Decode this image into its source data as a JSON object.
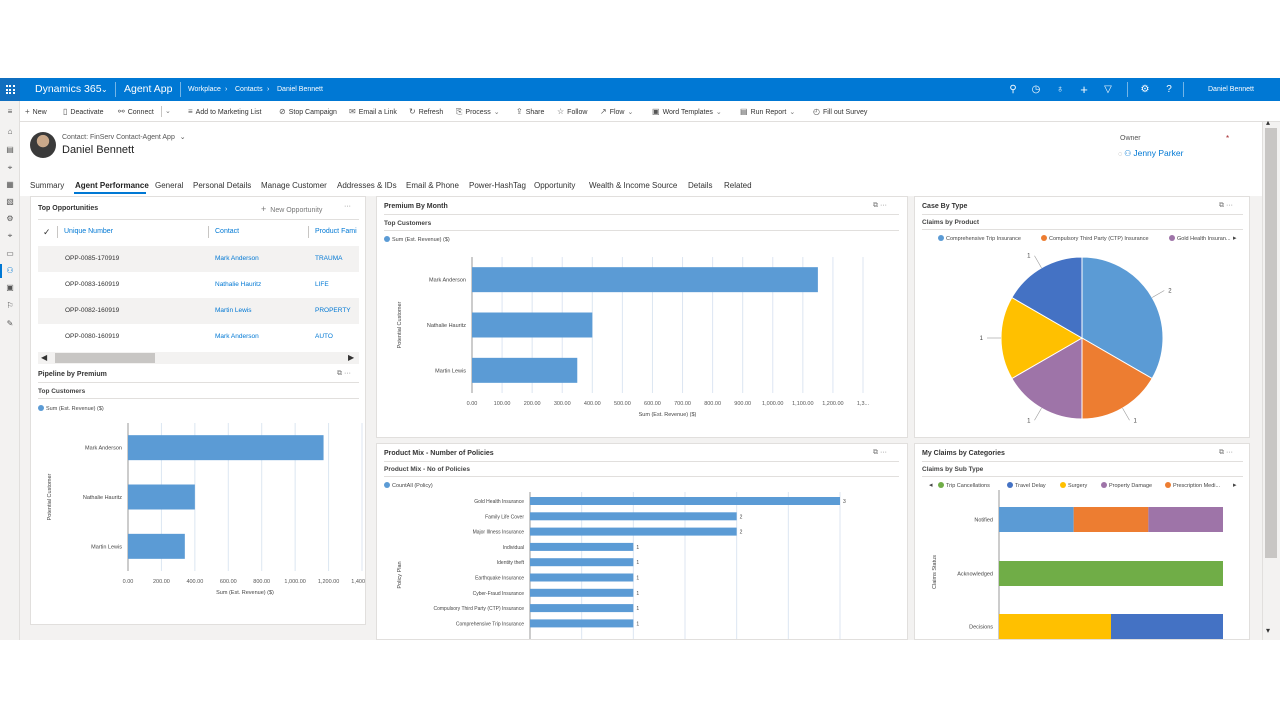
{
  "nav": {
    "app_suite": "Dynamics 365",
    "app_name": "Agent App",
    "breadcrumb": [
      "Workplace",
      "Contacts",
      "Daniel Bennett"
    ],
    "user": "Daniel Bennett"
  },
  "commands": [
    "New",
    "Deactivate",
    "Connect",
    "Add to Marketing List",
    "Stop Campaign",
    "Email a Link",
    "Refresh",
    "Process",
    "Share",
    "Follow",
    "Flow",
    "Word Templates",
    "Run Report",
    "Fill out Survey"
  ],
  "header": {
    "record_type": "Contact: FinServ Contact-Agent App",
    "name": "Daniel Bennett",
    "owner_label": "Owner",
    "owner_required": "*",
    "owner_value": "Jenny Parker"
  },
  "tabs": [
    "Summary",
    "Agent Performance",
    "General",
    "Personal Details",
    "Manage Customer",
    "Addresses & IDs",
    "Email & Phone",
    "Power-HashTag",
    "Opportunity",
    "Wealth & Income Source",
    "Details",
    "Related"
  ],
  "top_opportunities": {
    "title": "Top Opportunities",
    "new_label": "New Opportunity",
    "columns": [
      "Unique Number",
      "Contact",
      "Product Fami"
    ],
    "rows": [
      {
        "number": "OPP-0085-170919",
        "contact": "Mark Anderson",
        "product": "TRAUMA"
      },
      {
        "number": "OPP-0083-160919",
        "contact": "Nathalie Hauritz",
        "product": "LIFE"
      },
      {
        "number": "OPP-0082-160919",
        "contact": "Martin Lewis",
        "product": "PROPERTY"
      },
      {
        "number": "OPP-0080-160919",
        "contact": "Mark Anderson",
        "product": "AUTO"
      }
    ]
  },
  "colors": {
    "blue": "#5b9bd5",
    "dark_blue": "#4472c4",
    "orange": "#ed7d31",
    "yellow": "#ffc000",
    "purple": "#9e74a8",
    "green": "#70ad47",
    "accent": "#0078d4"
  },
  "pipeline_chart": {
    "title": "Pipeline by Premium",
    "subtitle": "Top Customers",
    "legend": "Sum (Est. Revenue) ($)",
    "xlabel": "Sum (Est. Revenue) ($)",
    "ylabel": "Potential Customer",
    "ticks": [
      "0.00",
      "200.00",
      "400.00",
      "600.00",
      "800.00",
      "1,000.00",
      "1,200.00",
      "1,400.00"
    ],
    "tick_values": [
      0,
      200,
      400,
      600,
      800,
      1000,
      1200,
      1400
    ],
    "categories": [
      "Mark Anderson",
      "Nathalie Hauritz",
      "Martin Lewis"
    ],
    "values": [
      1170,
      400,
      340
    ]
  },
  "premium_chart": {
    "title": "Premium By Month",
    "subtitle": "Top Customers",
    "legend": "Sum (Est. Revenue) ($)",
    "xlabel": "Sum (Est. Revenue) ($)",
    "ylabel": "Potential Customer",
    "ticks": [
      "0.00",
      "100.00",
      "200.00",
      "300.00",
      "400.00",
      "500.00",
      "600.00",
      "700.00",
      "800.00",
      "900.00",
      "1,000.00",
      "1,100.00",
      "1,200.00",
      "1,3..."
    ],
    "tick_values": [
      0,
      100,
      200,
      300,
      400,
      500,
      600,
      700,
      800,
      900,
      1000,
      1100,
      1200,
      1300
    ],
    "categories": [
      "Mark Anderson",
      "Nathalie Hauritz",
      "Martin Lewis"
    ],
    "values": [
      1150,
      400,
      350
    ]
  },
  "product_mix_chart": {
    "title": "Product Mix - Number of Policies",
    "subtitle": "Product Mix - No of Policies",
    "legend": "CountAll (Policy)",
    "ylabel": "Policy Plan",
    "categories": [
      "Gold Health Insurance",
      "Family Life Cover",
      "Major Illness Insurance",
      "Individual",
      "Identity theft",
      "Earthquake Insurance",
      "Cyber-Fraud Insurance",
      "Compulsory Third Party (CTP) Insurance",
      "Comprehensive Trip Insurance"
    ],
    "values": [
      3,
      2,
      2,
      1,
      1,
      1,
      1,
      1,
      1
    ]
  },
  "case_chart": {
    "title": "Case By Type",
    "subtitle": "Claims by Product",
    "legend": [
      "Comprehensive Trip Insurance",
      "Compulsory Third Party (CTP) Insurance",
      "Gold Health Insuran..."
    ],
    "slices": [
      {
        "label": "2",
        "value": 2,
        "color": "#5b9bd5"
      },
      {
        "label": "1",
        "value": 1,
        "color": "#ed7d31"
      },
      {
        "label": "1",
        "value": 1,
        "color": "#9e74a8"
      },
      {
        "label": "1",
        "value": 1,
        "color": "#ffc000"
      },
      {
        "label": "1",
        "value": 1,
        "color": "#4472c4"
      }
    ]
  },
  "claims_chart": {
    "title": "My Claims by Categories",
    "subtitle": "Claims by Sub Type",
    "legend": [
      "Trip Cancellations",
      "Travel Delay",
      "Surgery",
      "Property Damage",
      "Prescription Medi..."
    ],
    "ylabel": "Claims Status",
    "categories": [
      "Notified",
      "Acknowledged",
      "Decisions"
    ],
    "stacks": [
      [
        {
          "value": 1,
          "color": "#5b9bd5"
        },
        {
          "value": 1,
          "color": "#ed7d31"
        },
        {
          "value": 1,
          "color": "#9e74a8"
        }
      ],
      [
        {
          "value": 3,
          "color": "#70ad47"
        }
      ],
      [
        {
          "value": 1.5,
          "color": "#ffc000"
        },
        {
          "value": 1.5,
          "color": "#4472c4"
        }
      ]
    ]
  },
  "chart_data": [
    {
      "type": "bar",
      "title": "Pipeline by Premium",
      "subtitle": "Top Customers",
      "categories": [
        "Mark Anderson",
        "Nathalie Hauritz",
        "Martin Lewis"
      ],
      "values": [
        1170,
        400,
        340
      ],
      "xlabel": "Sum (Est. Revenue) ($)",
      "ylabel": "Potential Customer",
      "xlim": [
        0,
        1400
      ]
    },
    {
      "type": "bar",
      "title": "Premium By Month",
      "subtitle": "Top Customers",
      "categories": [
        "Mark Anderson",
        "Nathalie Hauritz",
        "Martin Lewis"
      ],
      "values": [
        1150,
        400,
        350
      ],
      "xlabel": "Sum (Est. Revenue) ($)",
      "ylabel": "Potential Customer"
    },
    {
      "type": "bar",
      "title": "Product Mix - Number of Policies",
      "subtitle": "Product Mix - No of Policies",
      "categories": [
        "Gold Health Insurance",
        "Family Life Cover",
        "Major Illness Insurance",
        "Individual",
        "Identity theft",
        "Earthquake Insurance",
        "Cyber-Fraud Insurance",
        "Compulsory Third Party (CTP) Insurance",
        "Comprehensive Trip Insurance"
      ],
      "values": [
        3,
        2,
        2,
        1,
        1,
        1,
        1,
        1,
        1
      ],
      "ylabel": "Policy Plan"
    },
    {
      "type": "pie",
      "title": "Case By Type",
      "subtitle": "Claims by Product",
      "values": [
        2,
        1,
        1,
        1,
        1
      ]
    },
    {
      "type": "bar",
      "title": "My Claims by Categories",
      "subtitle": "Claims by Sub Type",
      "categories": [
        "Notified",
        "Acknowledged",
        "Decisions"
      ],
      "ylabel": "Claims Status"
    }
  ]
}
